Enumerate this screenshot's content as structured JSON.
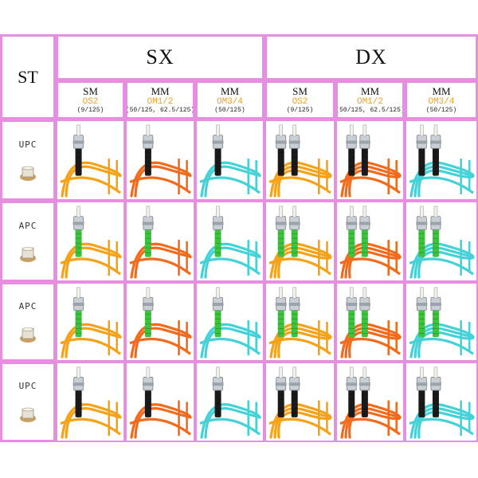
{
  "header": {
    "corner_label": "ST",
    "groups": [
      {
        "label": "SX"
      },
      {
        "label": "DX"
      }
    ],
    "columns": [
      {
        "mode": "SM",
        "grade": "OS2",
        "size": "(9/125)"
      },
      {
        "mode": "MM",
        "grade": "OM1/2",
        "size": "(50/125, 62.5/125)"
      },
      {
        "mode": "MM",
        "grade": "OM3/4",
        "size": "(50/125)"
      },
      {
        "mode": "SM",
        "grade": "OS2",
        "size": "(9/125)"
      },
      {
        "mode": "MM",
        "grade": "OM1/2",
        "size": "(50/125, 62.5/125)"
      },
      {
        "mode": "MM",
        "grade": "OM3/4",
        "size": "(50/125)"
      }
    ]
  },
  "rows": [
    {
      "polish": "UPC",
      "boot_color": "#1a1a1a",
      "ferrule": "flat"
    },
    {
      "polish": "APC",
      "boot_color": "#3cc43c",
      "ferrule": "angled"
    },
    {
      "polish": "APC",
      "boot_color": "#3cc43c",
      "ferrule": "angled"
    },
    {
      "polish": "UPC",
      "boot_color": "#1a1a1a",
      "ferrule": "flat"
    }
  ],
  "cable_colors": [
    "#f5a216",
    "#f26a1b",
    "#44d2d8",
    "#f5a216",
    "#f26a1b",
    "#44d2d8"
  ],
  "colors": {
    "grid_border": "#e87ee6",
    "grade_text": "#f0a020"
  }
}
